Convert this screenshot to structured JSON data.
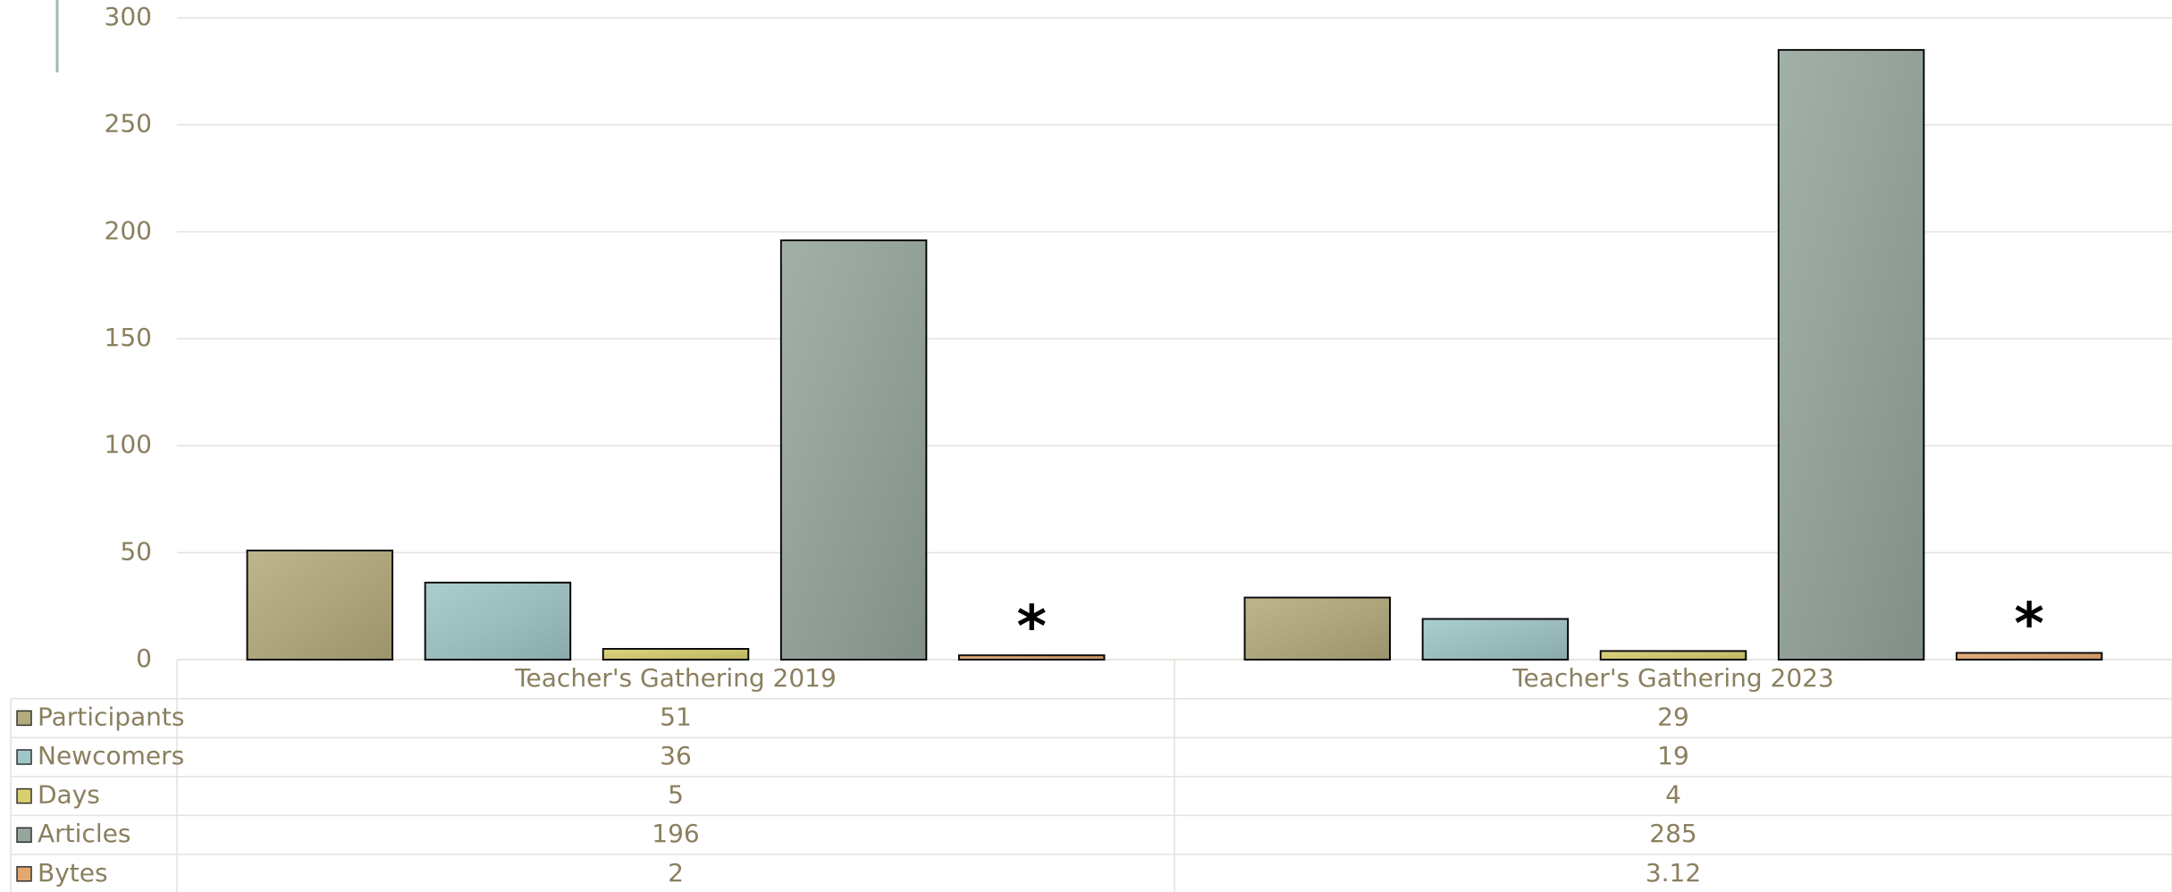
{
  "chart_data": {
    "type": "bar",
    "categories": [
      "Teacher's Gathering 2019",
      "Teacher's Gathering 2023"
    ],
    "series": [
      {
        "name": "Participants",
        "color": "#b4ab7c",
        "values": [
          51,
          29
        ]
      },
      {
        "name": "Newcomers",
        "color": "#9fc6c8",
        "values": [
          36,
          19
        ]
      },
      {
        "name": "Days",
        "color": "#d9cf6c",
        "values": [
          5,
          4
        ]
      },
      {
        "name": "Articles",
        "color": "#95a69c",
        "values": [
          196,
          285
        ]
      },
      {
        "name": "Bytes",
        "color": "#e3a86e",
        "values": [
          2,
          3.12
        ]
      }
    ],
    "annotations": [
      "*",
      "*"
    ],
    "ylim": [
      0,
      300
    ],
    "yticks": [
      0,
      50,
      100,
      150,
      200,
      250,
      300
    ],
    "grid": true
  }
}
